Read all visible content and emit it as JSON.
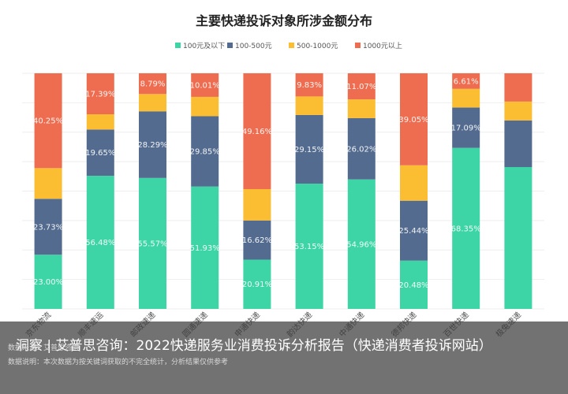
{
  "chart_data": {
    "type": "bar",
    "stacked": true,
    "percent": true,
    "title": "主要快递投诉对象所涉金额分布",
    "legend_position": "top",
    "categories": [
      "京东物流",
      "顺丰速运",
      "邮政速递",
      "圆通速递",
      "申通快递",
      "韵达快递",
      "中通快递",
      "德邦快递",
      "百世快递",
      "极兔速递"
    ],
    "category_labels": [
      "京东物流",
      "顺丰速运",
      "邮政速递",
      "圆通速递",
      "申通快递",
      "韵达快递",
      "中通快递",
      "德邦快递",
      "百世快递",
      "极兔速递"
    ],
    "series": [
      {
        "name": "100元及以下",
        "color": "#3dd5a5",
        "values": [
          23.0,
          56.48,
          55.57,
          51.93,
          20.91,
          53.15,
          54.96,
          20.48,
          68.35,
          60.2
        ],
        "labels": [
          "23.00%",
          "56.48%",
          "55.57%",
          "51.93%",
          "20.91%",
          "53.15%",
          "54.96%",
          "20.48%",
          "68.35%",
          ""
        ]
      },
      {
        "name": "100-500元",
        "color": "#536b8f",
        "values": [
          23.73,
          19.65,
          28.29,
          29.85,
          16.62,
          29.15,
          26.02,
          25.44,
          17.09,
          19.8
        ],
        "labels": [
          "23.73%",
          "19.65%",
          "28.29%",
          "29.85%",
          "16.62%",
          "29.15%",
          "26.02%",
          "25.44%",
          "17.09%",
          ""
        ]
      },
      {
        "name": "500-1000元",
        "color": "#fbbd32",
        "values": [
          13.02,
          6.48,
          7.35,
          8.21,
          13.31,
          7.87,
          7.95,
          15.03,
          7.95,
          8.0
        ],
        "labels": [
          "",
          "",
          "",
          "",
          "",
          "",
          "",
          "",
          "",
          ""
        ]
      },
      {
        "name": "1000元以上",
        "color": "#ee6d50",
        "values": [
          40.25,
          17.39,
          8.79,
          10.01,
          49.16,
          9.83,
          11.07,
          39.05,
          6.61,
          12.0
        ],
        "labels": [
          "40.25%",
          "17.39%",
          "8.79%",
          "10.01%",
          "49.16%",
          "9.83%",
          "11.07%",
          "39.05%",
          "6.61%",
          ""
        ]
      }
    ],
    "ylim": [
      0,
      100
    ],
    "grid": true
  },
  "caption": {
    "text": "洞察 | 艾普思咨询：2022快递服务业消费投诉分析报告（快递消费者投诉网站）",
    "source": "数据来源：艾普思咨询",
    "note": "数据说明：本次数据为按关键词获取的不完全统计，分析结果仅供参考"
  }
}
